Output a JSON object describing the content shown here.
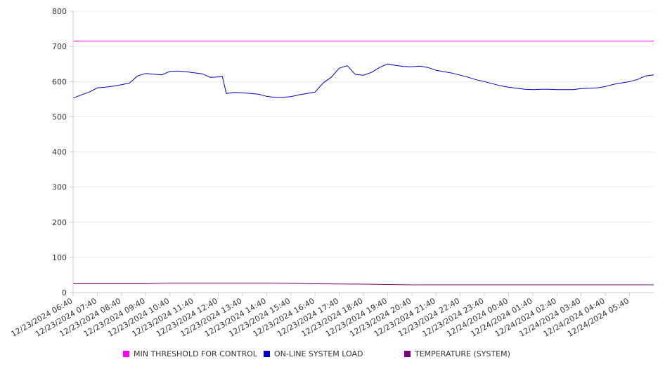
{
  "chart_data": {
    "type": "line",
    "title": "",
    "xlabel": "",
    "ylabel": "",
    "ylim": [
      0,
      800
    ],
    "yticks": [
      0,
      100,
      200,
      300,
      400,
      500,
      600,
      700,
      800
    ],
    "grid": true,
    "legend_position": "bottom",
    "xticks": [
      "12/23/2024 06:40",
      "12/23/2024 07:40",
      "12/23/2024 08:40",
      "12/23/2024 09:40",
      "12/23/2024 10:40",
      "12/23/2024 11:40",
      "12/23/2024 12:40",
      "12/23/2024 13:40",
      "12/23/2024 14:40",
      "12/23/2024 15:40",
      "12/23/2024 16:40",
      "12/23/2024 17:40",
      "12/23/2024 18:40",
      "12/23/2024 19:40",
      "12/23/2024 20:40",
      "12/23/2024 21:40",
      "12/23/2024 22:40",
      "12/23/2024 23:40",
      "12/24/2024 00:40",
      "12/24/2024 01:40",
      "12/24/2024 02:40",
      "12/24/2024 03:40",
      "12/24/2024 04:40",
      "12/24/2024 05:40"
    ],
    "series": [
      {
        "name": "MIN THRESHOLD FOR CONTROL",
        "color": "#ff00ff",
        "x": [
          "12/23/2024 06:40",
          "12/24/2024 06:40"
        ],
        "y": [
          715,
          715
        ]
      },
      {
        "name": "ON-LINE SYSTEM LOAD",
        "color": "#0000cc",
        "x": [
          "12/23/2024 06:40",
          "12/23/2024 07:00",
          "12/23/2024 07:20",
          "12/23/2024 07:40",
          "12/23/2024 08:00",
          "12/23/2024 08:20",
          "12/23/2024 08:40",
          "12/23/2024 09:00",
          "12/23/2024 09:20",
          "12/23/2024 09:40",
          "12/23/2024 10:00",
          "12/23/2024 10:20",
          "12/23/2024 10:40",
          "12/23/2024 11:00",
          "12/23/2024 11:20",
          "12/23/2024 11:40",
          "12/23/2024 12:00",
          "12/23/2024 12:20",
          "12/23/2024 12:40",
          "12/23/2024 12:50",
          "12/23/2024 13:00",
          "12/23/2024 13:20",
          "12/23/2024 13:40",
          "12/23/2024 14:00",
          "12/23/2024 14:20",
          "12/23/2024 14:40",
          "12/23/2024 15:00",
          "12/23/2024 15:20",
          "12/23/2024 15:40",
          "12/23/2024 16:00",
          "12/23/2024 16:20",
          "12/23/2024 16:40",
          "12/23/2024 17:00",
          "12/23/2024 17:20",
          "12/23/2024 17:40",
          "12/23/2024 18:00",
          "12/23/2024 18:20",
          "12/23/2024 18:40",
          "12/23/2024 19:00",
          "12/23/2024 19:20",
          "12/23/2024 19:40",
          "12/23/2024 20:00",
          "12/23/2024 20:20",
          "12/23/2024 20:40",
          "12/23/2024 21:00",
          "12/23/2024 21:20",
          "12/23/2024 21:40",
          "12/23/2024 22:00",
          "12/23/2024 22:20",
          "12/23/2024 22:40",
          "12/23/2024 23:00",
          "12/23/2024 23:20",
          "12/23/2024 23:40",
          "12/24/2024 00:00",
          "12/24/2024 00:20",
          "12/24/2024 00:40",
          "12/24/2024 01:00",
          "12/24/2024 01:20",
          "12/24/2024 01:40",
          "12/24/2024 02:00",
          "12/24/2024 02:20",
          "12/24/2024 02:40",
          "12/24/2024 03:00",
          "12/24/2024 03:20",
          "12/24/2024 03:40",
          "12/24/2024 04:00",
          "12/24/2024 04:20",
          "12/24/2024 04:40",
          "12/24/2024 05:00",
          "12/24/2024 05:20",
          "12/24/2024 05:40",
          "12/24/2024 06:00",
          "12/24/2024 06:20",
          "12/24/2024 06:40"
        ],
        "y": [
          553,
          562,
          570,
          582,
          584,
          587,
          591,
          596,
          616,
          623,
          621,
          619,
          629,
          630,
          628,
          625,
          622,
          612,
          613,
          615,
          566,
          569,
          568,
          566,
          564,
          558,
          555,
          555,
          557,
          562,
          566,
          570,
          596,
          612,
          638,
          645,
          620,
          618,
          626,
          640,
          650,
          646,
          643,
          642,
          644,
          640,
          632,
          628,
          624,
          618,
          612,
          605,
          600,
          594,
          588,
          584,
          581,
          578,
          577,
          578,
          578,
          577,
          577,
          577,
          580,
          581,
          582,
          586,
          592,
          596,
          600,
          606,
          616,
          619
        ]
      },
      {
        "name": "TEMPERATURE (SYSTEM)",
        "color": "#800080",
        "x": [
          "12/23/2024 06:40",
          "12/23/2024 09:40",
          "12/23/2024 10:40",
          "12/23/2024 12:40",
          "12/23/2024 14:40",
          "12/23/2024 16:40",
          "12/23/2024 18:40",
          "12/23/2024 20:40",
          "12/23/2024 22:40",
          "12/24/2024 00:40",
          "12/24/2024 02:40",
          "12/24/2024 04:40",
          "12/24/2024 06:40"
        ],
        "y": [
          25,
          25,
          27,
          27,
          27,
          25,
          24,
          22,
          22,
          22,
          22,
          22,
          22
        ]
      }
    ]
  }
}
